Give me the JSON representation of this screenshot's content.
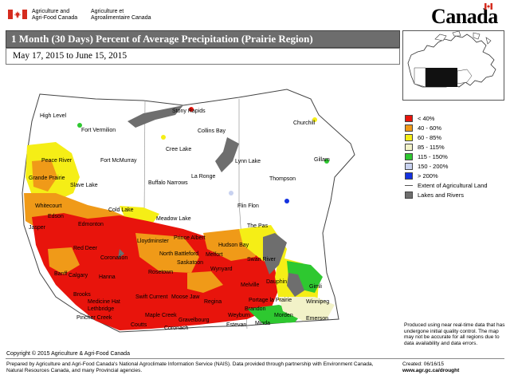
{
  "header": {
    "agency_en": "Agriculture and\nAgri-Food Canada",
    "agency_fr": "Agriculture et\nAgroalimentaire Canada",
    "wordmark": "Canada"
  },
  "title": "1 Month (30 Days) Percent of Average Precipitation  (Prairie Region)",
  "date_range": "May 17, 2015 to June 15, 2015",
  "legend": [
    {
      "label": "< 40%",
      "color": "#e8140c"
    },
    {
      "label": "40 - 60%",
      "color": "#f09a18"
    },
    {
      "label": "60 - 85%",
      "color": "#f5ee16"
    },
    {
      "label": "85 - 115%",
      "color": "#f2f2c8"
    },
    {
      "label": "115 - 150%",
      "color": "#2ec830"
    },
    {
      "label": "150 - 200%",
      "color": "#c8d2f0"
    },
    {
      "label": "> 200%",
      "color": "#1432e0"
    },
    {
      "label": "Extent of Agricultural Land",
      "color": "#555555"
    },
    {
      "label": "Lakes and Rivers",
      "color": "#6e6e6e"
    }
  ],
  "disclaimer": "Produced using near real-time data that has undergone initial quality control.  The map may not be accurate for all regions due to data availability and data errors.",
  "copyright": "Copyright © 2015 Agriculture & Agri-Food Canada",
  "prepared": "Prepared by Agriculture and Agri-Food Canada's National Agroclimate Information Service (NAIS).  Data provided through partnership with Environment Canada, Natural Resources Canada, and many Provincial agencies.",
  "created": "Created: 06/16/15",
  "website": "www.agr.gc.ca/drought",
  "cities": [
    {
      "name": "High Level"
    },
    {
      "name": "Fort Vermilion"
    },
    {
      "name": "Stony Rapids"
    },
    {
      "name": "Collins Bay"
    },
    {
      "name": "Churchill"
    },
    {
      "name": "Cree Lake"
    },
    {
      "name": "Fort McMurray"
    },
    {
      "name": "Lynn Lake"
    },
    {
      "name": "Gillam"
    },
    {
      "name": "Peace River"
    },
    {
      "name": "Grande Prairie"
    },
    {
      "name": "Thompson"
    },
    {
      "name": "Buffalo Narrows"
    },
    {
      "name": "La Ronge"
    },
    {
      "name": "Flin Flon"
    },
    {
      "name": "Slave Lake"
    },
    {
      "name": "Whitecourt"
    },
    {
      "name": "Cold Lake"
    },
    {
      "name": "Meadow Lake"
    },
    {
      "name": "Edson"
    },
    {
      "name": "Edmonton"
    },
    {
      "name": "Jasper"
    },
    {
      "name": "Lloydminster"
    },
    {
      "name": "Prince Albert"
    },
    {
      "name": "The Pas"
    },
    {
      "name": "Hudson Bay"
    },
    {
      "name": "North Battleford"
    },
    {
      "name": "Melfort"
    },
    {
      "name": "Red Deer"
    },
    {
      "name": "Coronation"
    },
    {
      "name": "Saskatoon"
    },
    {
      "name": "Wynyard"
    },
    {
      "name": "Rosetown"
    },
    {
      "name": "Swan River"
    },
    {
      "name": "Banff"
    },
    {
      "name": "Calgary"
    },
    {
      "name": "Hanna"
    },
    {
      "name": "Dauphin"
    },
    {
      "name": "Gimli"
    },
    {
      "name": "Melville"
    },
    {
      "name": "Brooks"
    },
    {
      "name": "Medicine Hat"
    },
    {
      "name": "Swift Current"
    },
    {
      "name": "Moose Jaw"
    },
    {
      "name": "Regina"
    },
    {
      "name": "Portage la Prairie"
    },
    {
      "name": "Winnipeg"
    },
    {
      "name": "Lethbridge"
    },
    {
      "name": "Pincher Creek"
    },
    {
      "name": "Maple Creek"
    },
    {
      "name": "Gravelbourg"
    },
    {
      "name": "Weyburn"
    },
    {
      "name": "Brandon"
    },
    {
      "name": "Morden"
    },
    {
      "name": "Emerson"
    },
    {
      "name": "Coronach"
    },
    {
      "name": "Estevan"
    },
    {
      "name": "Coutts"
    },
    {
      "name": "Minda"
    }
  ]
}
